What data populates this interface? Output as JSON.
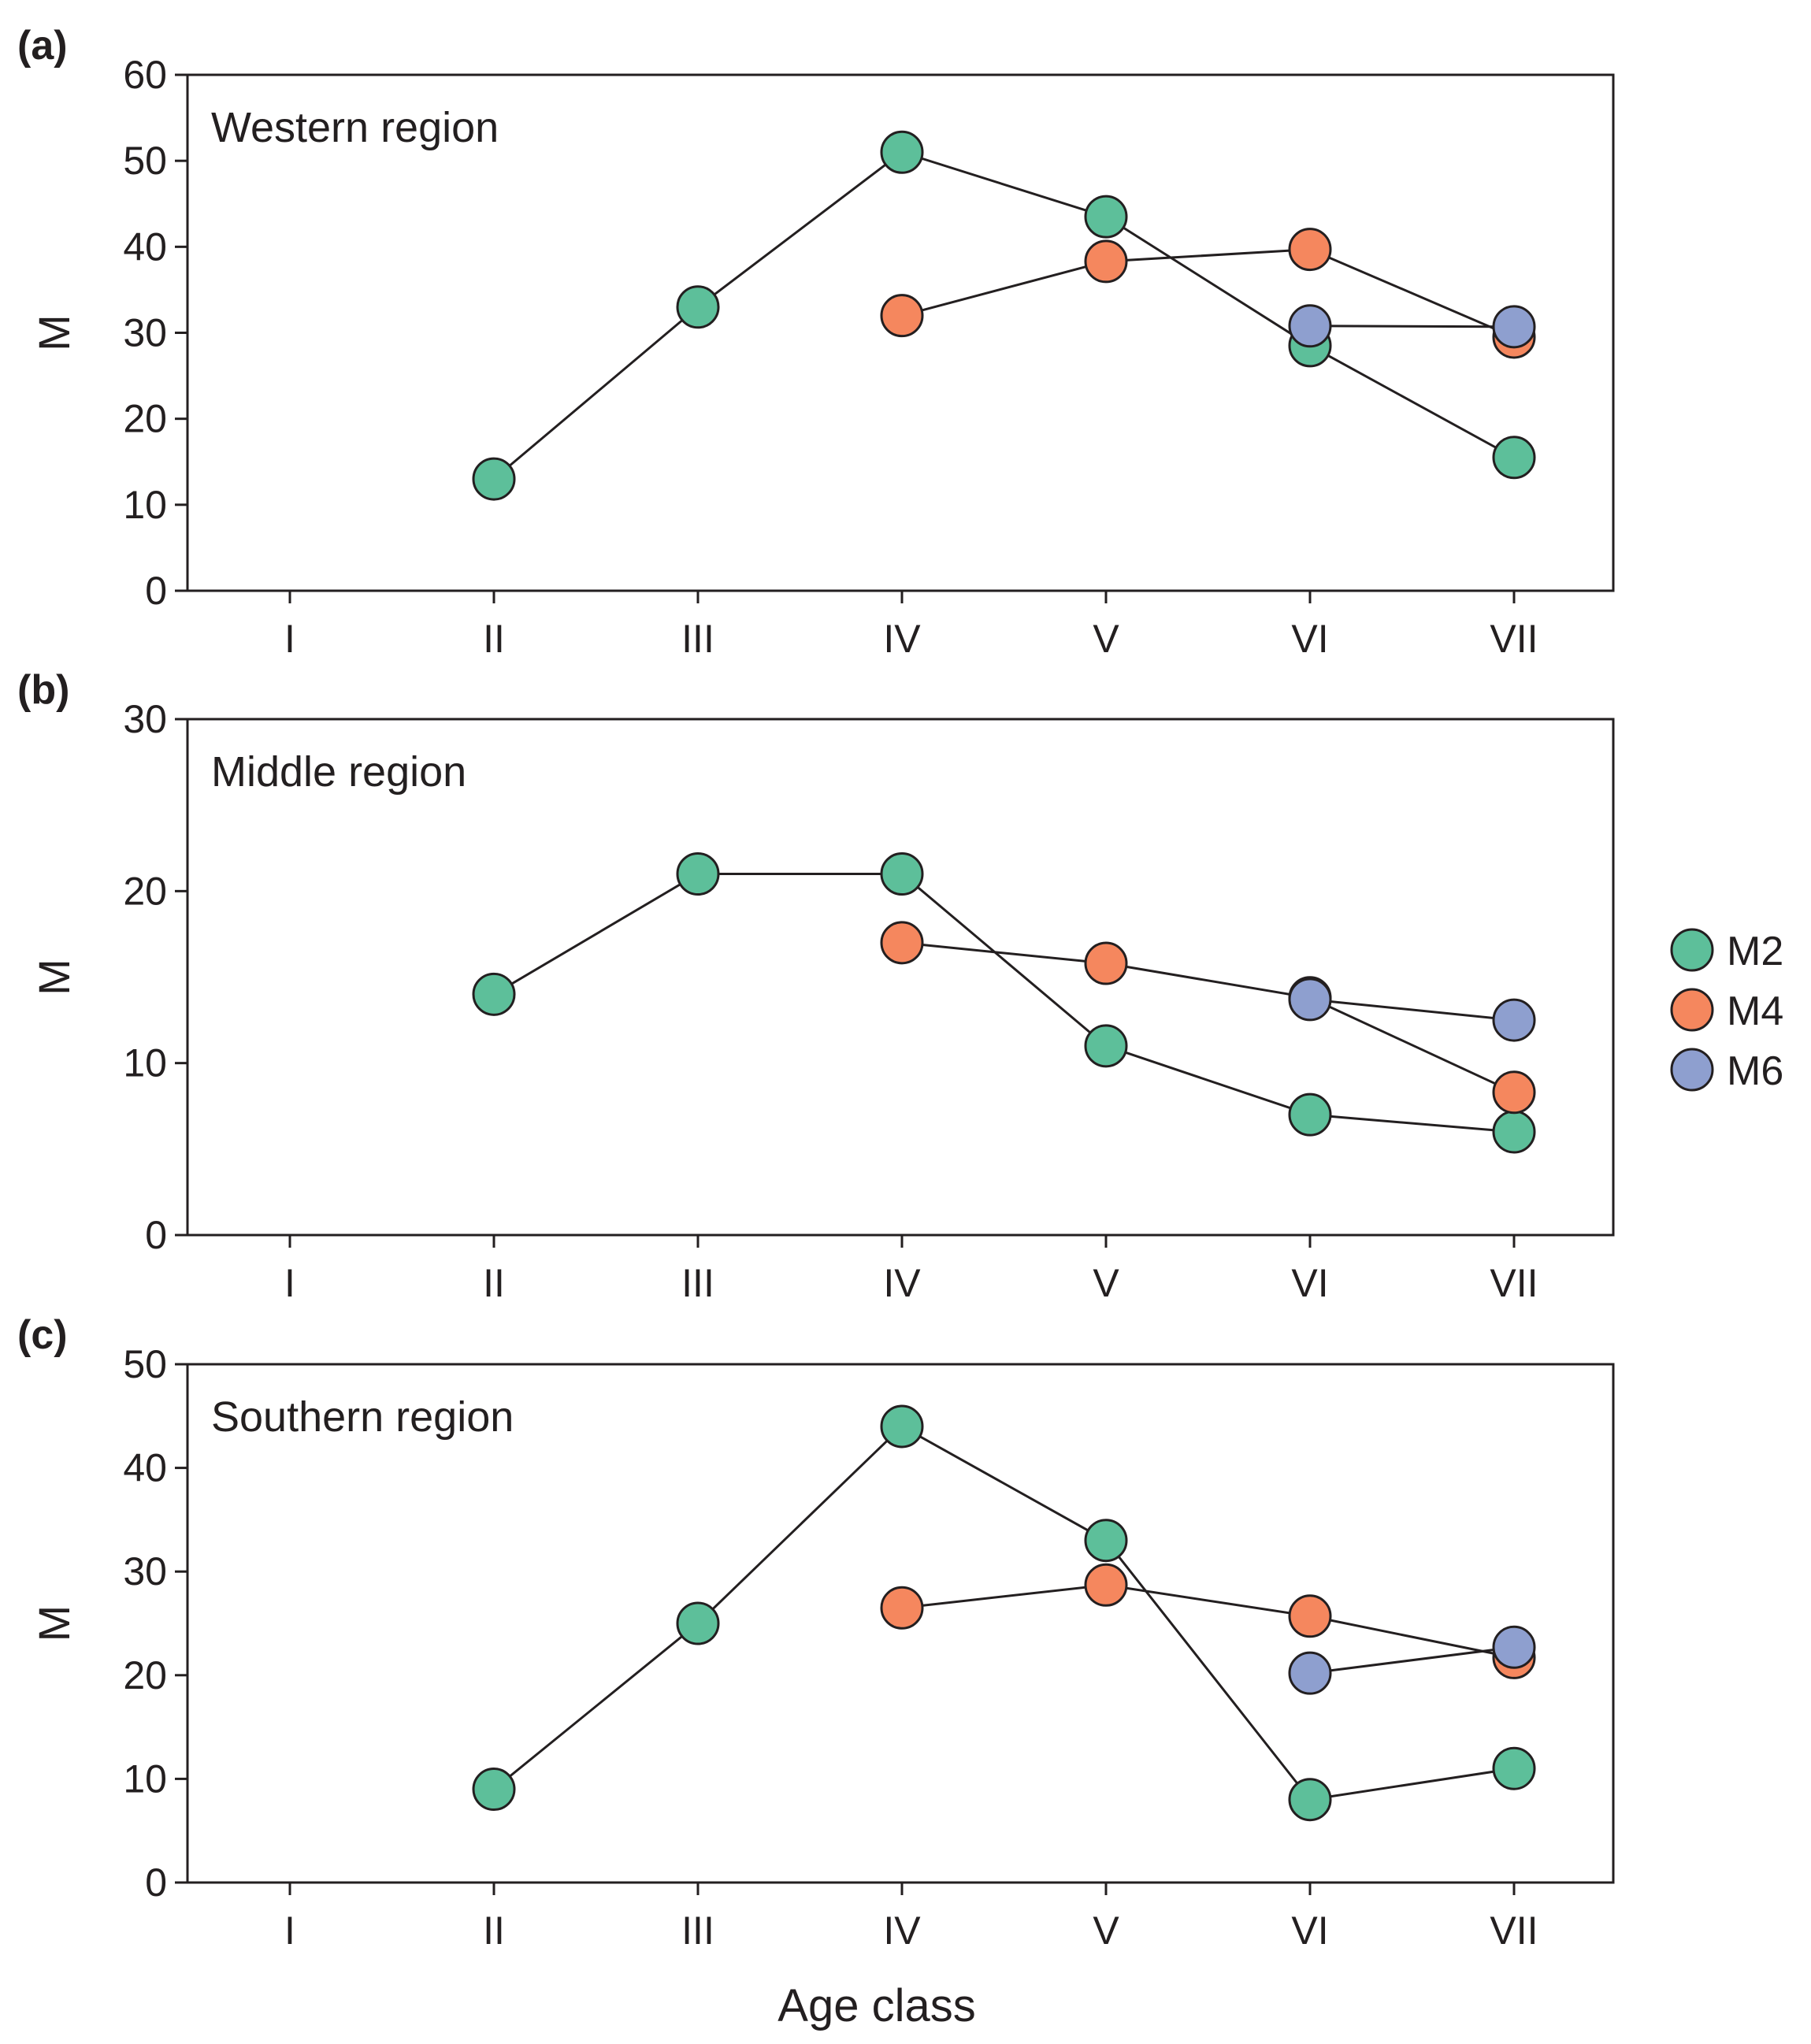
{
  "chart_data": [
    {
      "type": "line",
      "panel_label": "(a)",
      "title": "Western region",
      "xlabel": "",
      "ylabel": "M",
      "categories": [
        "I",
        "II",
        "III",
        "IV",
        "V",
        "VI",
        "VII"
      ],
      "ylim": [
        0,
        60
      ],
      "yticks": [
        0,
        10,
        20,
        30,
        40,
        50,
        60
      ],
      "series": [
        {
          "name": "M2",
          "values": [
            null,
            13,
            33,
            51,
            43.5,
            28.5,
            15.5
          ]
        },
        {
          "name": "M4",
          "values": [
            null,
            null,
            null,
            32,
            38.3,
            39.7,
            29.5
          ]
        },
        {
          "name": "M6",
          "values": [
            null,
            null,
            null,
            null,
            null,
            30.8,
            30.7
          ]
        }
      ]
    },
    {
      "type": "line",
      "panel_label": "(b)",
      "title": "Middle region",
      "xlabel": "",
      "ylabel": "M",
      "categories": [
        "I",
        "II",
        "III",
        "IV",
        "V",
        "VI",
        "VII"
      ],
      "ylim": [
        0,
        30
      ],
      "yticks": [
        0,
        10,
        20,
        30
      ],
      "series": [
        {
          "name": "M2",
          "values": [
            null,
            14,
            21,
            21,
            11,
            7,
            6
          ]
        },
        {
          "name": "M4",
          "values": [
            null,
            null,
            null,
            17,
            15.8,
            13.8,
            8.3
          ]
        },
        {
          "name": "M6",
          "values": [
            null,
            null,
            null,
            null,
            null,
            13.7,
            12.5
          ]
        }
      ]
    },
    {
      "type": "line",
      "panel_label": "(c)",
      "title": "Southern region",
      "xlabel": "Age class",
      "ylabel": "M",
      "categories": [
        "I",
        "II",
        "III",
        "IV",
        "V",
        "VI",
        "VII"
      ],
      "ylim": [
        0,
        50
      ],
      "yticks": [
        0,
        10,
        20,
        30,
        40,
        50
      ],
      "series": [
        {
          "name": "M2",
          "values": [
            null,
            9,
            25,
            44,
            33,
            8,
            11
          ]
        },
        {
          "name": "M4",
          "values": [
            null,
            null,
            null,
            26.5,
            28.7,
            25.7,
            21.7
          ]
        },
        {
          "name": "M6",
          "values": [
            null,
            null,
            null,
            null,
            null,
            20.2,
            22.7
          ]
        }
      ]
    }
  ],
  "legend": {
    "position": "right",
    "items": [
      {
        "name": "M2",
        "color": "#5dbf9a"
      },
      {
        "name": "M4",
        "color": "#f5875e"
      },
      {
        "name": "M6",
        "color": "#8e9fcf"
      }
    ]
  },
  "colors": {
    "M2": "#5dbf9a",
    "M4": "#f5875e",
    "M6": "#8e9fcf",
    "axis": "#231f20"
  }
}
